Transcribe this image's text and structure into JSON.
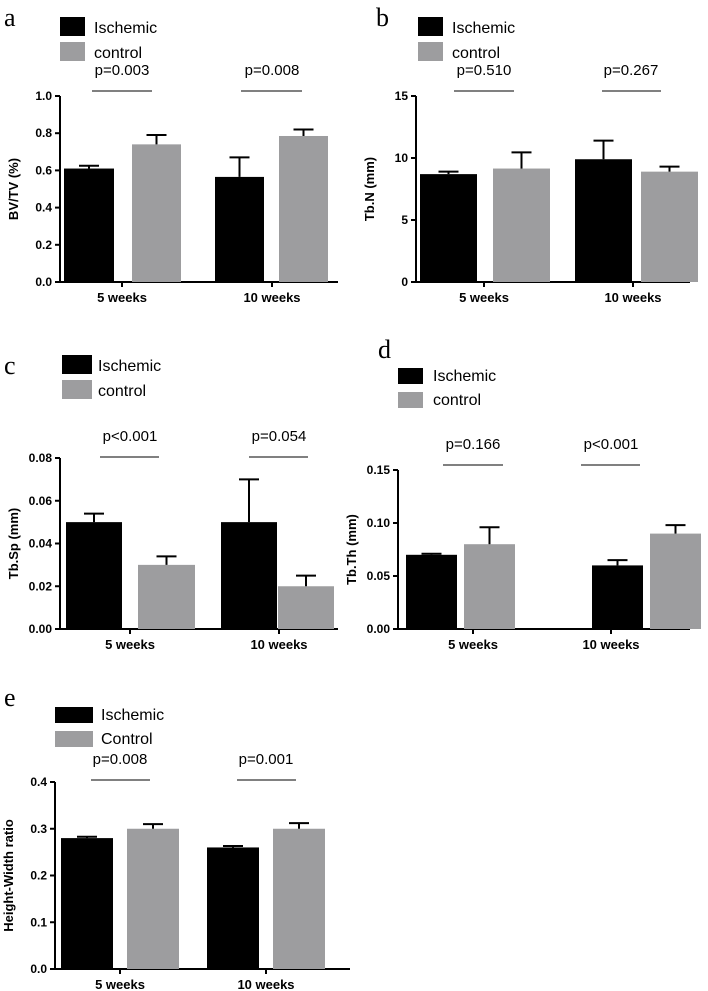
{
  "colors": {
    "ischemic": "#000000",
    "control": "#9d9d9f",
    "axis": "#000000"
  },
  "chart_data": [
    {
      "type": "bar",
      "panel": "a",
      "legend": [
        "Ischemic",
        "control"
      ],
      "categories": [
        "5 weeks",
        "10 weeks"
      ],
      "ylabel": "BV/TV (%)",
      "ylim": [
        0,
        1.0
      ],
      "yticks": [
        "0.0",
        "0.2",
        "0.4",
        "0.6",
        "0.8",
        "1.0"
      ],
      "series": [
        {
          "name": "Ischemic",
          "values": [
            0.61,
            0.565
          ],
          "errors": [
            0.015,
            0.105
          ]
        },
        {
          "name": "control",
          "values": [
            0.74,
            0.785
          ],
          "errors": [
            0.05,
            0.035
          ]
        }
      ],
      "pvalues": [
        "p=0.003",
        "p=0.008"
      ]
    },
    {
      "type": "bar",
      "panel": "b",
      "legend": [
        "Ischemic",
        "control"
      ],
      "categories": [
        "5 weeks",
        "10 weeks"
      ],
      "ylabel": "Tb.N (mm)",
      "ylim": [
        0,
        15
      ],
      "yticks": [
        "0",
        "5",
        "10",
        "15"
      ],
      "series": [
        {
          "name": "Ischemic",
          "values": [
            8.7,
            9.9
          ],
          "errors": [
            0.2,
            1.5
          ]
        },
        {
          "name": "control",
          "values": [
            9.15,
            8.9
          ],
          "errors": [
            1.3,
            0.4
          ]
        }
      ],
      "pvalues": [
        "p=0.510",
        "p=0.267"
      ]
    },
    {
      "type": "bar",
      "panel": "c",
      "legend": [
        "Ischemic",
        "control"
      ],
      "categories": [
        "5 weeks",
        "10 weeks"
      ],
      "ylabel": "Tb.Sp (mm)",
      "ylim": [
        0,
        0.08
      ],
      "yticks": [
        "0.00",
        "0.02",
        "0.04",
        "0.06",
        "0.08"
      ],
      "series": [
        {
          "name": "Ischemic",
          "values": [
            0.05,
            0.05
          ],
          "errors": [
            0.004,
            0.02
          ]
        },
        {
          "name": "control",
          "values": [
            0.03,
            0.02
          ],
          "errors": [
            0.004,
            0.005
          ]
        }
      ],
      "pvalues": [
        "p<0.001",
        "p=0.054"
      ]
    },
    {
      "type": "bar",
      "panel": "d",
      "legend": [
        "Ischemic",
        "control"
      ],
      "categories": [
        "5 weeks",
        "10 weeks"
      ],
      "ylabel": "Tb.Th (mm)",
      "ylim": [
        0,
        0.15
      ],
      "yticks": [
        "0.00",
        "0.05",
        "0.10",
        "0.15"
      ],
      "series": [
        {
          "name": "Ischemic",
          "values": [
            0.07,
            0.06
          ],
          "errors": [
            0.001,
            0.005
          ]
        },
        {
          "name": "control",
          "values": [
            0.08,
            0.09
          ],
          "errors": [
            0.016,
            0.008
          ]
        }
      ],
      "pvalues": [
        "p=0.166",
        "p<0.001"
      ]
    },
    {
      "type": "bar",
      "panel": "e",
      "legend": [
        "Ischemic",
        "Control"
      ],
      "categories": [
        "5 weeks",
        "10 weeks"
      ],
      "ylabel": "Height-Width ratio",
      "ylim": [
        0,
        0.4
      ],
      "yticks": [
        "0.0",
        "0.1",
        "0.2",
        "0.3",
        "0.4"
      ],
      "series": [
        {
          "name": "Ischemic",
          "values": [
            0.28,
            0.26
          ],
          "errors": [
            0.003,
            0.003
          ]
        },
        {
          "name": "Control",
          "values": [
            0.3,
            0.3
          ],
          "errors": [
            0.01,
            0.012
          ]
        }
      ],
      "pvalues": [
        "p=0.008",
        "p=0.001"
      ]
    }
  ]
}
